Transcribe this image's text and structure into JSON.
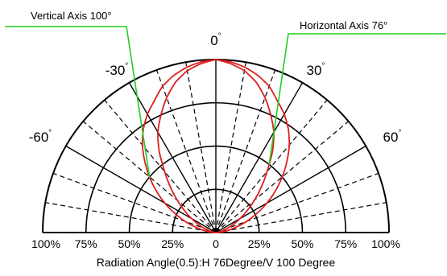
{
  "chart_data": {
    "type": "polar-half",
    "title": "",
    "caption": "Radiation Angle(0.5):H 76Degree/V 100 Degree",
    "angle_labels": [
      {
        "angle": -60,
        "text": "-60",
        "deg": "°"
      },
      {
        "angle": -30,
        "text": "-30",
        "deg": "°"
      },
      {
        "angle": 0,
        "text": "0",
        "deg": "°"
      },
      {
        "angle": 30,
        "text": "30",
        "deg": "°"
      },
      {
        "angle": 60,
        "text": "60",
        "deg": "°"
      }
    ],
    "radial_ticks_left": [
      "100%",
      "75%",
      "50%",
      "25%"
    ],
    "radial_ticks_right": [
      "25%",
      "50%",
      "75%",
      "100%"
    ],
    "center_tick": "0",
    "rings": [
      0.25,
      0.5,
      0.75,
      1.0
    ],
    "spokes_deg": [
      -80,
      -70,
      -60,
      -50,
      -40,
      -30,
      -20,
      -10,
      0,
      10,
      20,
      30,
      40,
      50,
      60,
      70,
      80
    ],
    "solid_spokes_deg": [
      -60,
      -30,
      0,
      30,
      60
    ],
    "series": [
      {
        "name": "Vertical Axis 100°",
        "half_angle_deg": 50,
        "color": "#dd1f1f",
        "r_by_angle": [
          [
            0,
            1.0
          ],
          [
            5,
            0.99
          ],
          [
            10,
            0.97
          ],
          [
            15,
            0.94
          ],
          [
            20,
            0.9
          ],
          [
            25,
            0.84
          ],
          [
            30,
            0.79
          ],
          [
            35,
            0.73
          ],
          [
            40,
            0.66
          ],
          [
            45,
            0.58
          ],
          [
            50,
            0.5
          ],
          [
            55,
            0.42
          ],
          [
            60,
            0.34
          ],
          [
            65,
            0.26
          ],
          [
            70,
            0.19
          ],
          [
            75,
            0.12
          ],
          [
            80,
            0.07
          ],
          [
            85,
            0.03
          ],
          [
            90,
            0.0
          ]
        ]
      },
      {
        "name": "Horizontal Axis 76°",
        "half_angle_deg": 38,
        "color": "#dd1f1f",
        "r_by_angle": [
          [
            0,
            1.0
          ],
          [
            5,
            0.98
          ],
          [
            10,
            0.95
          ],
          [
            15,
            0.9
          ],
          [
            20,
            0.83
          ],
          [
            25,
            0.75
          ],
          [
            30,
            0.67
          ],
          [
            35,
            0.57
          ],
          [
            38,
            0.5
          ],
          [
            40,
            0.46
          ],
          [
            45,
            0.37
          ],
          [
            50,
            0.29
          ],
          [
            55,
            0.22
          ],
          [
            60,
            0.16
          ],
          [
            65,
            0.11
          ],
          [
            70,
            0.07
          ],
          [
            75,
            0.04
          ],
          [
            80,
            0.02
          ],
          [
            90,
            0.0
          ]
        ]
      }
    ],
    "annotations": [
      {
        "text": "Vertical Axis 100°",
        "series": 0,
        "side": "left",
        "color": "#22cc22"
      },
      {
        "text": "Horizontal Axis 76°",
        "series": 1,
        "side": "right",
        "color": "#22cc22"
      }
    ]
  }
}
